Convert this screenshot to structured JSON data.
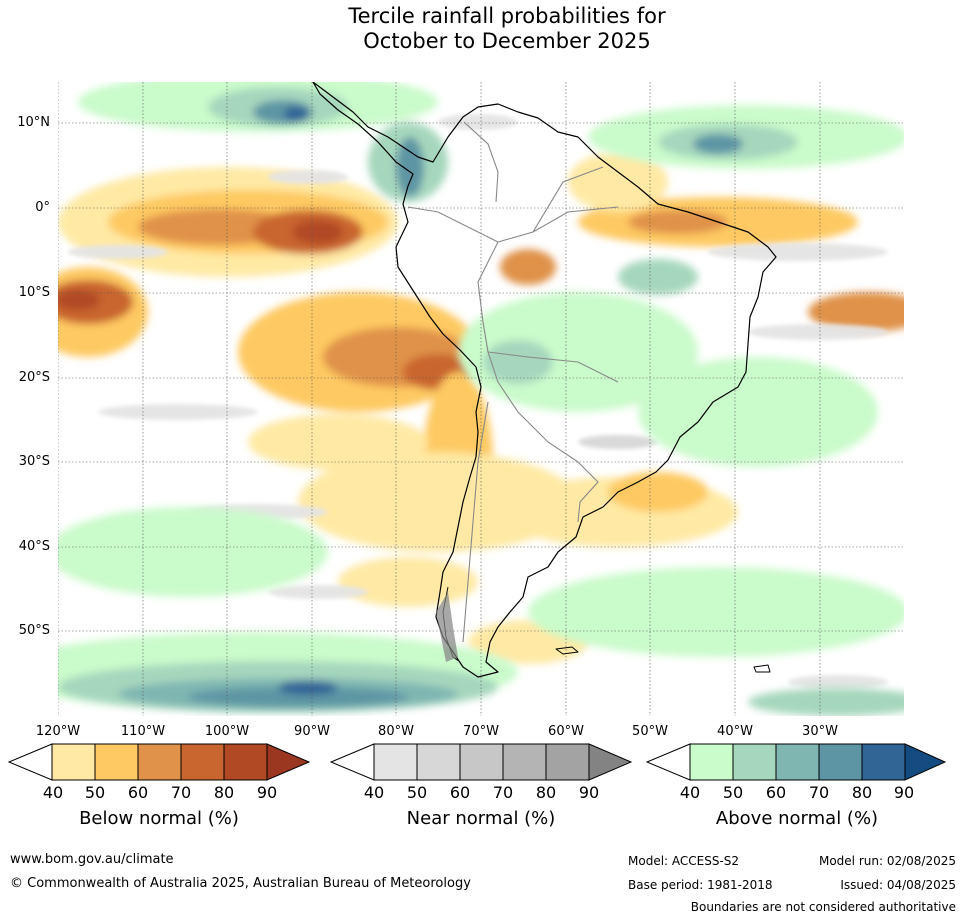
{
  "title": {
    "line1": "Tercile rainfall probabilities for",
    "line2": "October to December 2025"
  },
  "map": {
    "lat_labels": [
      "10°N",
      "0°",
      "10°S",
      "20°S",
      "30°S",
      "40°S",
      "50°S"
    ],
    "lon_labels": [
      "120°W",
      "110°W",
      "100°W",
      "90°W",
      "80°W",
      "70°W",
      "60°W",
      "50°W",
      "40°W",
      "30°W"
    ],
    "region": "South America",
    "colors": {
      "below": [
        "#ffe9a4",
        "#fec962",
        "#e0924a",
        "#c9652f",
        "#b14925",
        "#9b3621"
      ],
      "near": [
        "#e4e4e4",
        "#d7d7d7",
        "#c7c7c7",
        "#b4b4b4",
        "#a3a3a3",
        "#838383"
      ],
      "above": [
        "#cafbcb",
        "#a6d7bd",
        "#7fb6b2",
        "#5d95a4",
        "#316596",
        "#144c82"
      ],
      "land_outline": "#000000",
      "borders": "#888888"
    }
  },
  "legend": {
    "below": {
      "title": "Below normal (%)",
      "ticks": [
        "40",
        "50",
        "60",
        "70",
        "80",
        "90"
      ]
    },
    "near": {
      "title": "Near normal (%)",
      "ticks": [
        "40",
        "50",
        "60",
        "70",
        "80",
        "90"
      ]
    },
    "above": {
      "title": "Above normal (%)",
      "ticks": [
        "40",
        "50",
        "60",
        "70",
        "80",
        "90"
      ]
    }
  },
  "footer": {
    "url": "www.bom.gov.au/climate",
    "copyright": "© Commonwealth of Australia 2025, Australian Bureau of Meteorology",
    "model": "Model: ACCESS-S2",
    "base_period": "Base period: 1981-2018",
    "model_run": "Model run: 02/08/2025",
    "issued": "Issued: 04/08/2025",
    "disclaimer": "Boundaries are not considered authoritative"
  }
}
